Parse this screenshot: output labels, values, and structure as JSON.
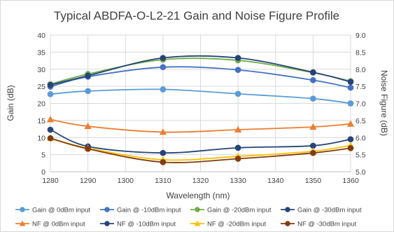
{
  "chart_data": {
    "type": "line",
    "title": "Typical ABDFA-O-L2-21 Gain and Noise Figure Profile",
    "xlabel": "Wavelength (nm)",
    "ylabel": "Gain (dB)",
    "y2label": "Noise Figure (dB)",
    "x": [
      1280,
      1290,
      1310,
      1330,
      1350,
      1360
    ],
    "xlim": [
      1280,
      1360
    ],
    "xticks": [
      1280,
      1290,
      1300,
      1310,
      1320,
      1330,
      1340,
      1350,
      1360
    ],
    "ylim": [
      0,
      40
    ],
    "yticks": [
      0,
      5,
      10,
      15,
      20,
      25,
      30,
      35,
      40
    ],
    "y2lim": [
      5.0,
      9.0
    ],
    "y2ticks": [
      "5.0",
      "5.5",
      "6.0",
      "6.5",
      "7.0",
      "7.5",
      "8.0",
      "8.5",
      "9.0"
    ],
    "grid": true,
    "legend_position": "bottom",
    "series": [
      {
        "name": "Gain @ 0dBm input",
        "axis": "left",
        "marker": "circle",
        "color": "#5B9BD5",
        "values": [
          22.7,
          23.6,
          24.1,
          22.8,
          21.4,
          20.0
        ]
      },
      {
        "name": "Gain @ -10dBm input",
        "axis": "left",
        "marker": "circle",
        "color": "#4472C4",
        "values": [
          24.9,
          27.8,
          30.6,
          29.8,
          26.8,
          24.6
        ]
      },
      {
        "name": "Gain @ -20dBm input",
        "axis": "left",
        "marker": "circle",
        "color": "#70AD47",
        "values": [
          25.6,
          28.6,
          32.8,
          32.6,
          29.0,
          26.5
        ]
      },
      {
        "name": "Gain @ -30dBm input",
        "axis": "left",
        "marker": "circle",
        "color": "#264478",
        "values": [
          25.4,
          28.1,
          33.3,
          33.3,
          29.1,
          26.3
        ]
      },
      {
        "name": "NF @ 0dBm input",
        "axis": "right",
        "marker": "triangle",
        "color": "#ED7D31",
        "values": [
          6.53,
          6.33,
          6.16,
          6.23,
          6.31,
          6.4
        ]
      },
      {
        "name": "NF @ -10dBm input",
        "axis": "right",
        "marker": "circle",
        "color": "#264478",
        "values": [
          6.23,
          5.74,
          5.55,
          5.7,
          5.76,
          5.95
        ]
      },
      {
        "name": "NF @ -20dBm input",
        "axis": "right",
        "marker": "triangle",
        "color": "#FFC000",
        "values": [
          5.98,
          5.69,
          5.35,
          5.45,
          5.6,
          5.77
        ]
      },
      {
        "name": "NF @ -30dBm input",
        "axis": "right",
        "marker": "circle",
        "color": "#843C0C",
        "values": [
          5.98,
          5.67,
          5.28,
          5.38,
          5.55,
          5.69
        ]
      }
    ]
  }
}
